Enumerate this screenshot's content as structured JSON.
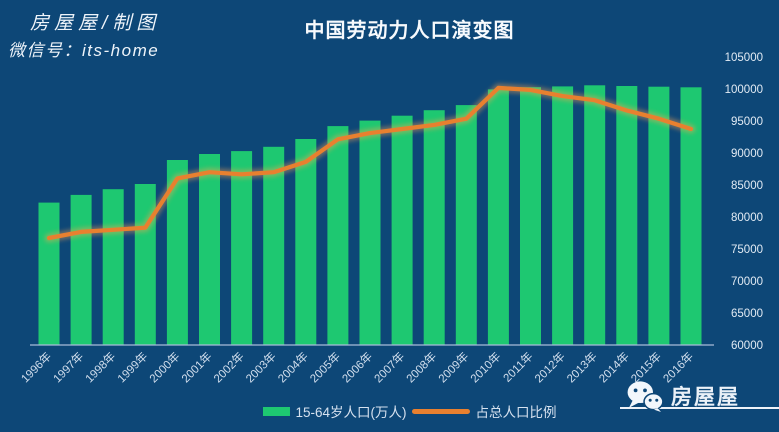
{
  "watermark": {
    "line1": "房屋屋/制图",
    "line2": "微信号：its-home"
  },
  "title": "中国劳动力人口演变图",
  "logo": {
    "name": "房屋屋"
  },
  "colors": {
    "background": "#0d4777",
    "bar": "#1ec871",
    "line": "#e8802f",
    "line_glow": "#ffa54f",
    "axis": "#a9bcd8",
    "tick_text": "#e2ebf4",
    "category_text": "#d2dfee"
  },
  "chart_data": {
    "type": "bar",
    "subtype": "combo-bar-line",
    "title": "中国劳动力人口演变图",
    "grid": false,
    "legend_position": "bottom",
    "categories": [
      "1996年",
      "1997年",
      "1998年",
      "1999年",
      "2000年",
      "2001年",
      "2002年",
      "2003年",
      "2004年",
      "2005年",
      "2006年",
      "2007年",
      "2008年",
      "2009年",
      "2010年",
      "2011年",
      "2012年",
      "2013年",
      "2014年",
      "2015年",
      "2016年"
    ],
    "series": [
      {
        "name": "15-64岁人口(万人)",
        "render": "bar",
        "axis": "right",
        "values": [
          82245,
          83448,
          84338,
          85157,
          88910,
          89849,
          90302,
          90976,
          92184,
          94197,
          95068,
          95833,
          96680,
          97484,
          99938,
          100283,
          100403,
          100582,
          100469,
          100361,
          100260
        ]
      },
      {
        "name": "占总人口比例",
        "render": "line",
        "axis": "hidden",
        "values": [
          67.2,
          67.5,
          67.6,
          67.7,
          70.1,
          70.4,
          70.3,
          70.4,
          70.9,
          72.0,
          72.3,
          72.5,
          72.7,
          73.0,
          74.5,
          74.4,
          74.1,
          73.9,
          73.4,
          73.0,
          72.5
        ]
      }
    ],
    "y_axis": {
      "position": "right",
      "min": 60000,
      "max": 105000,
      "step": 5000,
      "tick_labels": [
        "60000",
        "65000",
        "70000",
        "75000",
        "80000",
        "85000",
        "90000",
        "95000",
        "100000",
        "105000"
      ]
    },
    "line_axis_hidden": {
      "min": 62,
      "max": 76
    }
  }
}
